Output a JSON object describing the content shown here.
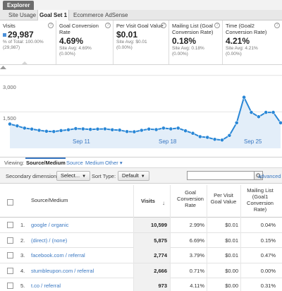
{
  "explorer": {
    "tab_label": "Explorer"
  },
  "subtabs": [
    "Site Usage",
    "Goal Set 1",
    "Ecommerce",
    "AdSense"
  ],
  "metrics": {
    "visits": {
      "label": "Visits",
      "value": "29,987",
      "sub1": "% of Total: 100.00%",
      "sub2": "(29,987)"
    },
    "goal_conv": {
      "label": "Goal Conversion Rate",
      "value": "4.69%",
      "sub1": "Site Avg: 4.69%",
      "sub2": "(0.00%)"
    },
    "per_visit": {
      "label": "Per Visit Goal Value",
      "value": "$0.01",
      "sub1": "Site Avg: $0.01",
      "sub2": "(0.00%)"
    },
    "mailing": {
      "label": "Mailing List (Goal Conversion Rate)",
      "value": "0.18%",
      "sub1": "Site Avg: 0.18%",
      "sub2": "(0.00%)"
    },
    "time": {
      "label": "Time (Goal2 Conversion Rate)",
      "value": "4.21%",
      "sub1": "Site Avg: 4.21%",
      "sub2": "(0.00%)"
    }
  },
  "chart_data": {
    "type": "area",
    "series": [
      {
        "name": "Visits",
        "values": [
          1000,
          920,
          830,
          790,
          740,
          700,
          690,
          730,
          760,
          810,
          800,
          780,
          790,
          800,
          760,
          750,
          690,
          680,
          740,
          790,
          770,
          830,
          800,
          830,
          720,
          620,
          480,
          450,
          370,
          340,
          530,
          1050,
          2100,
          1480,
          1300,
          1480,
          1480,
          1050
        ]
      }
    ],
    "y_ticks": [
      "3,000",
      "1,500"
    ],
    "y_range": [
      0,
      3400
    ],
    "x_labels": [
      "Sep 11",
      "Sep 18",
      "Sep 25"
    ],
    "color": "#2a87d6",
    "fill": "#e3eef9"
  },
  "viewing": {
    "label": "Viewing:",
    "tabs": [
      "Source/Medium",
      "Source",
      "Medium",
      "Other ▾"
    ]
  },
  "controls": {
    "secondary_label": "Secondary dimension:",
    "secondary_value": "Select...",
    "sort_label": "Sort Type:",
    "sort_value": "Default",
    "search_value": "",
    "advanced_label": "advanced"
  },
  "table": {
    "headers": {
      "source": "Source/Medium",
      "visits": "Visits",
      "goal_conv": "Goal Conversion Rate",
      "per_visit": "Per Visit Goal Value",
      "mailing": "Mailing List (Goal1 Conversion Rate)"
    },
    "rows": [
      {
        "idx": "1.",
        "source": "google / organic",
        "visits": "10,599",
        "goal_conv": "2.99%",
        "per_visit": "$0.01",
        "mailing": "0.04%"
      },
      {
        "idx": "2.",
        "source": "(direct) / (none)",
        "visits": "5,875",
        "goal_conv": "6.69%",
        "per_visit": "$0.01",
        "mailing": "0.15%"
      },
      {
        "idx": "3.",
        "source": "facebook.com / referral",
        "visits": "2,774",
        "goal_conv": "3.79%",
        "per_visit": "$0.01",
        "mailing": "0.47%"
      },
      {
        "idx": "4.",
        "source": "stumbleupon.com / referral",
        "visits": "2,666",
        "goal_conv": "0.71%",
        "per_visit": "$0.00",
        "mailing": "0.00%"
      },
      {
        "idx": "5.",
        "source": "t.co / referral",
        "visits": "973",
        "goal_conv": "4.11%",
        "per_visit": "$0.00",
        "mailing": "0.31%"
      }
    ]
  }
}
